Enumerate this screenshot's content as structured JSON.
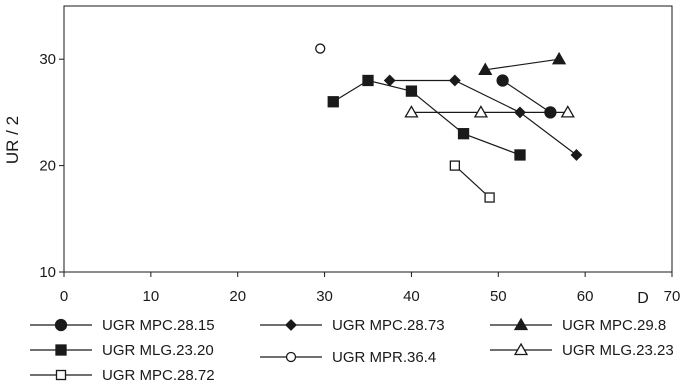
{
  "chart_data": {
    "type": "line",
    "title": "",
    "xlabel": "D",
    "ylabel": "UR / 2",
    "xlim": [
      0,
      70
    ],
    "ylim": [
      10,
      35
    ],
    "x_ticks": [
      0,
      10,
      20,
      30,
      40,
      50,
      60,
      70
    ],
    "y_ticks": [
      10,
      20,
      30
    ],
    "grid": false,
    "legend_position": "bottom",
    "series": [
      {
        "name": "UGR MPC.28.15",
        "marker": "circle-filled",
        "points": [
          [
            50.5,
            28
          ],
          [
            56,
            25
          ]
        ]
      },
      {
        "name": "UGR MPC.28.73",
        "marker": "diamond-filled",
        "points": [
          [
            37.5,
            28
          ],
          [
            45,
            28
          ],
          [
            52.5,
            25
          ],
          [
            59,
            21
          ]
        ]
      },
      {
        "name": "UGR MPC.29.8",
        "marker": "triangle-filled",
        "points": [
          [
            48.5,
            29
          ],
          [
            57,
            30
          ]
        ]
      },
      {
        "name": "UGR MLG.23.20",
        "marker": "square-filled",
        "points": [
          [
            31,
            26
          ],
          [
            35,
            28
          ],
          [
            40,
            27
          ],
          [
            46,
            23
          ],
          [
            52.5,
            21
          ]
        ]
      },
      {
        "name": "UGR MPR.36.4",
        "marker": "circle-open",
        "points": [
          [
            29.5,
            31
          ]
        ]
      },
      {
        "name": "UGR MLG.23.23",
        "marker": "triangle-open",
        "points": [
          [
            40,
            25
          ],
          [
            48,
            25
          ],
          [
            58,
            25
          ]
        ]
      },
      {
        "name": "UGR MPC.28.72",
        "marker": "square-open",
        "points": [
          [
            45,
            20
          ],
          [
            49,
            17
          ]
        ]
      }
    ]
  }
}
